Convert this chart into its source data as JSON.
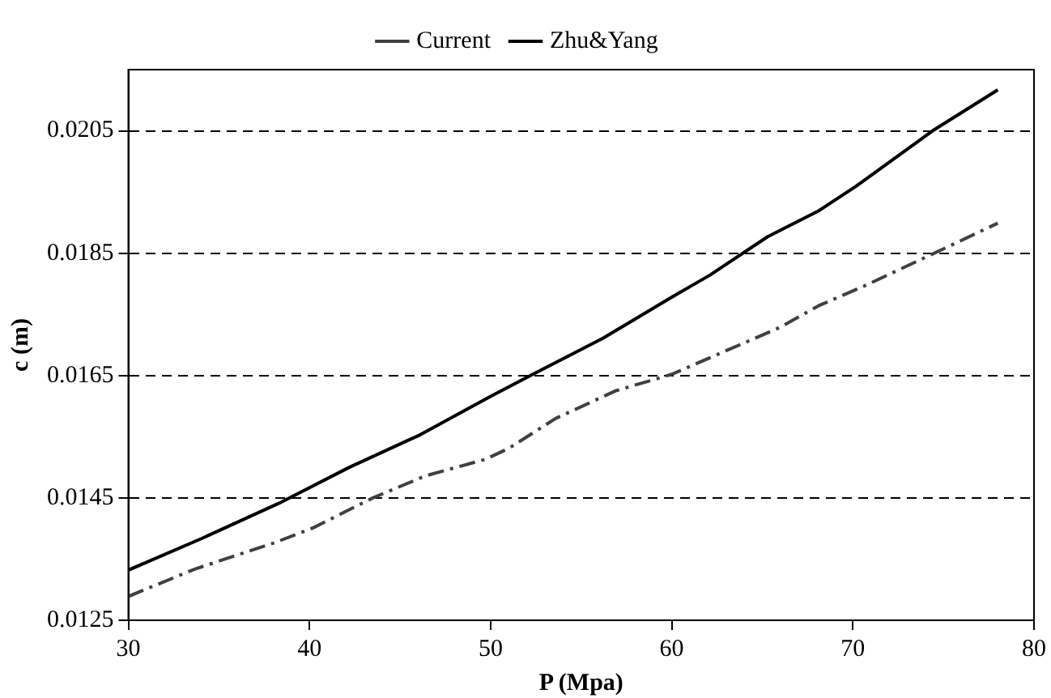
{
  "chart_data": {
    "type": "line",
    "xlabel": "P (Mpa)",
    "ylabel": "c (m)",
    "xlim": [
      30,
      80
    ],
    "xticks": [
      30,
      40,
      50,
      60,
      70,
      80
    ],
    "ylim": [
      0.0125,
      0.0215
    ],
    "yticks": [
      0.0125,
      0.0145,
      0.0165,
      0.0185,
      0.0205
    ],
    "grid": "y",
    "legend": "top",
    "marker": "none",
    "series": [
      {
        "name": "Current",
        "color": "#404040",
        "line_style": "dashed",
        "x": [
          30,
          33.7,
          38,
          40.2,
          43.5,
          46.4,
          49.7,
          51,
          53.6,
          56.9,
          60,
          62.1,
          66,
          68.1,
          70.6,
          74.5,
          78
        ],
        "values": [
          0.01289,
          0.01334,
          0.01376,
          0.01401,
          0.0145,
          0.01486,
          0.01513,
          0.01531,
          0.0158,
          0.01625,
          0.01652,
          0.01679,
          0.01729,
          0.01764,
          0.01796,
          0.0185,
          0.01899
        ]
      },
      {
        "name": "Zhu&Yang",
        "color": "#000000",
        "line_style": "solid",
        "x": [
          30,
          34,
          38.3,
          42.2,
          46.1,
          50,
          52.2,
          56.2,
          60,
          62.1,
          65.3,
          68.1,
          70.2,
          74.4,
          78
        ],
        "values": [
          0.01332,
          0.01383,
          0.01441,
          0.015,
          0.01553,
          0.01616,
          0.0165,
          0.01711,
          0.01778,
          0.01814,
          0.01877,
          0.01919,
          0.0196,
          0.0205,
          0.02117
        ]
      }
    ]
  }
}
